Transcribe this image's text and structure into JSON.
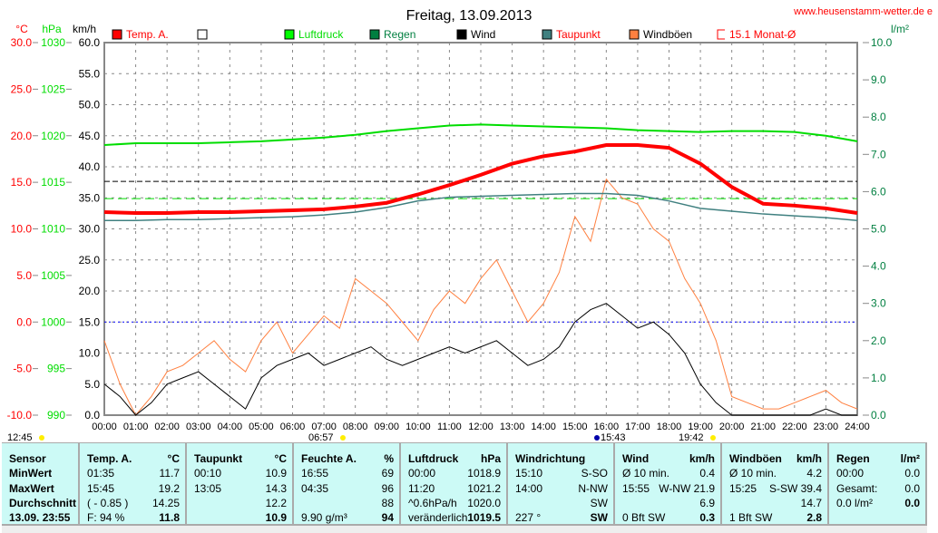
{
  "chart_data": {
    "type": "line",
    "title": "Freitag, 13.09.2013",
    "watermark": "www.heusenstamm-wetter.de e",
    "axes": {
      "temp": {
        "unit": "°C",
        "ticks": [
          "30.0",
          "25.0",
          "20.0",
          "15.0",
          "10.0",
          "5.0",
          "0.0",
          "-5.0",
          "-10.0"
        ],
        "range": [
          -10,
          30
        ]
      },
      "pressure": {
        "unit": "hPa",
        "ticks": [
          "1030",
          "1025",
          "1020",
          "1015",
          "1010",
          "1005",
          "1000",
          "995",
          "990"
        ],
        "range": [
          990,
          1030
        ]
      },
      "wind": {
        "unit": "km/h",
        "ticks": [
          "60.0",
          "55.0",
          "50.0",
          "45.0",
          "40.0",
          "35.0",
          "30.0",
          "25.0",
          "20.0",
          "15.0",
          "10.0",
          "5.0",
          "0.0"
        ],
        "range": [
          0,
          60
        ]
      },
      "rain": {
        "unit": "l/m²",
        "ticks": [
          "10.0",
          "9.0",
          "8.0",
          "7.0",
          "6.0",
          "5.0",
          "4.0",
          "3.0",
          "2.0",
          "1.0",
          "0.0"
        ],
        "range": [
          0,
          10
        ]
      },
      "x_ticks": [
        "00:00",
        "01:00",
        "02:00",
        "03:00",
        "04:00",
        "05:00",
        "06:00",
        "07:00",
        "08:00",
        "09:00",
        "10:00",
        "11:00",
        "12:00",
        "13:00",
        "14:00",
        "15:00",
        "16:00",
        "17:00",
        "18:00",
        "19:00",
        "20:00",
        "21:00",
        "22:00",
        "23:00",
        "24:00"
      ]
    },
    "legend": [
      {
        "label": "Temp. A.",
        "color": "#ff0000"
      },
      {
        "label": "",
        "color": "#ffffff"
      },
      {
        "label": "Luftdruck",
        "color": "#00ff00"
      },
      {
        "label": "Regen",
        "color": "#007f40"
      },
      {
        "label": "Wind",
        "color": "#000000"
      },
      {
        "label": "Taupunkt",
        "color": "#408080"
      },
      {
        "label": "Windböen",
        "color": "#ff8040"
      },
      {
        "label": "15.1 Monat-Ø",
        "color": "#ff0000"
      }
    ],
    "reference_lines": {
      "monthly_avg_temp": 15.1,
      "std_pressure": 1013.25,
      "freezing": 0
    },
    "hours_hourly": [
      0,
      1,
      2,
      3,
      4,
      5,
      6,
      7,
      8,
      9,
      10,
      11,
      12,
      13,
      14,
      15,
      16,
      17,
      18,
      19,
      20,
      21,
      22,
      23,
      24
    ],
    "temp": [
      11.8,
      11.7,
      11.7,
      11.8,
      11.8,
      11.9,
      12.0,
      12.1,
      12.4,
      12.8,
      13.7,
      14.7,
      15.8,
      17.0,
      17.8,
      18.3,
      19.0,
      19.0,
      18.7,
      17.0,
      14.5,
      12.7,
      12.5,
      12.2,
      11.7
    ],
    "dewpoint": [
      10.9,
      10.9,
      11.0,
      11.0,
      11.1,
      11.2,
      11.3,
      11.5,
      11.8,
      12.3,
      13.0,
      13.4,
      13.5,
      13.6,
      13.7,
      13.8,
      13.8,
      13.6,
      13.0,
      12.2,
      11.9,
      11.6,
      11.4,
      11.2,
      10.9
    ],
    "pressure": [
      1019.0,
      1019.2,
      1019.2,
      1019.2,
      1019.3,
      1019.4,
      1019.6,
      1019.8,
      1020.1,
      1020.5,
      1020.8,
      1021.1,
      1021.2,
      1021.1,
      1021.0,
      1020.9,
      1020.8,
      1020.6,
      1020.5,
      1020.4,
      1020.5,
      1020.5,
      1020.4,
      1020.0,
      1019.4
    ],
    "hours_half": "0..24 step 0.5",
    "gust": [
      12,
      5,
      0,
      3,
      7,
      8,
      10,
      12,
      9,
      7,
      12,
      15,
      10,
      13,
      16,
      14,
      22,
      20,
      18,
      15,
      12,
      17,
      20,
      18,
      22,
      25,
      20,
      15,
      18,
      23,
      32,
      28,
      38,
      35,
      34,
      30,
      28,
      22,
      18,
      12,
      3,
      2,
      1,
      1,
      2,
      3,
      4,
      2,
      1
    ],
    "wind": [
      5,
      3,
      0,
      2,
      5,
      6,
      7,
      5,
      3,
      1,
      6,
      8,
      9,
      10,
      8,
      9,
      10,
      11,
      9,
      8,
      9,
      10,
      11,
      10,
      11,
      12,
      10,
      8,
      9,
      11,
      15,
      17,
      18,
      16,
      14,
      15,
      13,
      10,
      5,
      2,
      0,
      0,
      0,
      0,
      0,
      0,
      1,
      0,
      0
    ],
    "rain": 0.0,
    "markers": [
      {
        "label": "12:45",
        "type": "moonset"
      },
      {
        "label": "06:57",
        "type": "sunrise"
      },
      {
        "label": "15:43",
        "type": "moonrise"
      },
      {
        "label": "19:42",
        "type": "sunset"
      }
    ]
  },
  "table": {
    "cols": [
      {
        "h": [
          "Sensor",
          ""
        ],
        "r": [
          [
            "MinWert",
            ""
          ],
          [
            "MaxWert",
            ""
          ],
          [
            "Durchschnitt",
            ""
          ],
          [
            "13.09.  23:55",
            ""
          ]
        ],
        "boldall": true
      },
      {
        "h": [
          "Temp. A.",
          "°C"
        ],
        "r": [
          [
            "01:35",
            "11.7"
          ],
          [
            "15:45",
            "19.2"
          ],
          [
            "( - 0.85 )",
            "14.25"
          ],
          [
            "F: 94 %",
            "11.8"
          ]
        ]
      },
      {
        "h": [
          "Taupunkt",
          "°C"
        ],
        "r": [
          [
            "00:10",
            "10.9"
          ],
          [
            "13:05",
            "14.3"
          ],
          [
            "",
            "12.2"
          ],
          [
            "",
            "10.9"
          ]
        ]
      },
      {
        "h": [
          "Feuchte A.",
          "%"
        ],
        "r": [
          [
            "16:55",
            "69"
          ],
          [
            "04:35",
            "96"
          ],
          [
            "",
            "88"
          ],
          [
            "9.90 g/m³",
            "94"
          ]
        ]
      },
      {
        "h": [
          "Luftdruck",
          "hPa"
        ],
        "r": [
          [
            "00:00",
            "1018.9"
          ],
          [
            "11:20",
            "1021.2"
          ],
          [
            "^0.6hPa/h",
            "1020.0"
          ],
          [
            "veränderlich",
            "1019.5"
          ]
        ]
      },
      {
        "h": [
          "Windrichtung",
          ""
        ],
        "r": [
          [
            "15:10",
            "S-SO"
          ],
          [
            "14:00",
            "N-NW"
          ],
          [
            "",
            "SW"
          ],
          [
            "227 °",
            "SW"
          ]
        ]
      },
      {
        "h": [
          "Wind",
          "km/h"
        ],
        "r": [
          [
            "Ø 10 min.",
            "0.4"
          ],
          [
            "15:55",
            "W-NW 21.9"
          ],
          [
            "",
            "6.9"
          ],
          [
            "0 Bft SW",
            "0.3"
          ]
        ]
      },
      {
        "h": [
          "Windböen",
          "km/h"
        ],
        "r": [
          [
            "Ø 10 min.",
            "4.2"
          ],
          [
            "15:25",
            "S-SW 39.4"
          ],
          [
            "",
            "14.7"
          ],
          [
            "1 Bft SW",
            "2.8"
          ]
        ]
      },
      {
        "h": [
          "Regen",
          "l/m²"
        ],
        "r": [
          [
            "",
            ""
          ],
          [
            "00:00",
            "0.0"
          ],
          [
            "Gesamt:",
            "0.0"
          ],
          [
            "0.0 l/m²",
            "0.0"
          ]
        ]
      }
    ]
  }
}
